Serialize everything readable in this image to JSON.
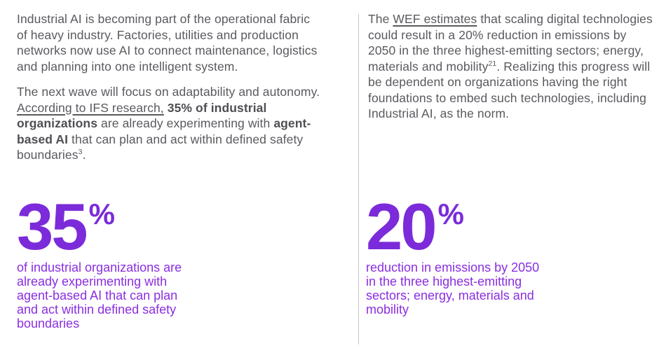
{
  "colors": {
    "text_gray": "#595a5e",
    "accent_purple": "#7b2bd9",
    "caption_purple": "#8a2ee0",
    "divider_gray": "#c7c8cb",
    "background": "#ffffff"
  },
  "left_column": {
    "paragraph1": "Industrial AI is becoming part of the operational fabric of heavy industry. Factories, utilities and production networks now use AI to connect maintenance, logistics and planning into one intelligent system.",
    "paragraph2": {
      "lead": "The next wave will focus on adaptability and autonomy. ",
      "link": "According to IFS research,",
      "space": " ",
      "bold1": "35% of industrial organizations",
      "mid1": " are already experimenting with ",
      "bold2": "agent-based AI",
      "mid2": " that can plan and act within defined safety boundaries",
      "footnote": "3",
      "end": "."
    },
    "stat": {
      "value": "35",
      "unit": "%",
      "caption": "of industrial organizations are already experimenting with agent-based AI that can plan and act within defined safety boundaries"
    }
  },
  "right_column": {
    "paragraph": {
      "lead": "The ",
      "link": "WEF estimates",
      "mid1": " that scaling digital technologies could result in a 20% reduction in emissions by 2050 in the three highest-emitting sectors; energy, materials and mobility",
      "footnote": "21",
      "end": ". Realizing this progress will be dependent on organizations having the right foundations to embed such technologies, including Industrial AI, as the norm."
    },
    "stat": {
      "value": "20",
      "unit": "%",
      "caption": "reduction in emissions by 2050 in the three highest-emitting sectors; energy, materials and mobility"
    }
  }
}
